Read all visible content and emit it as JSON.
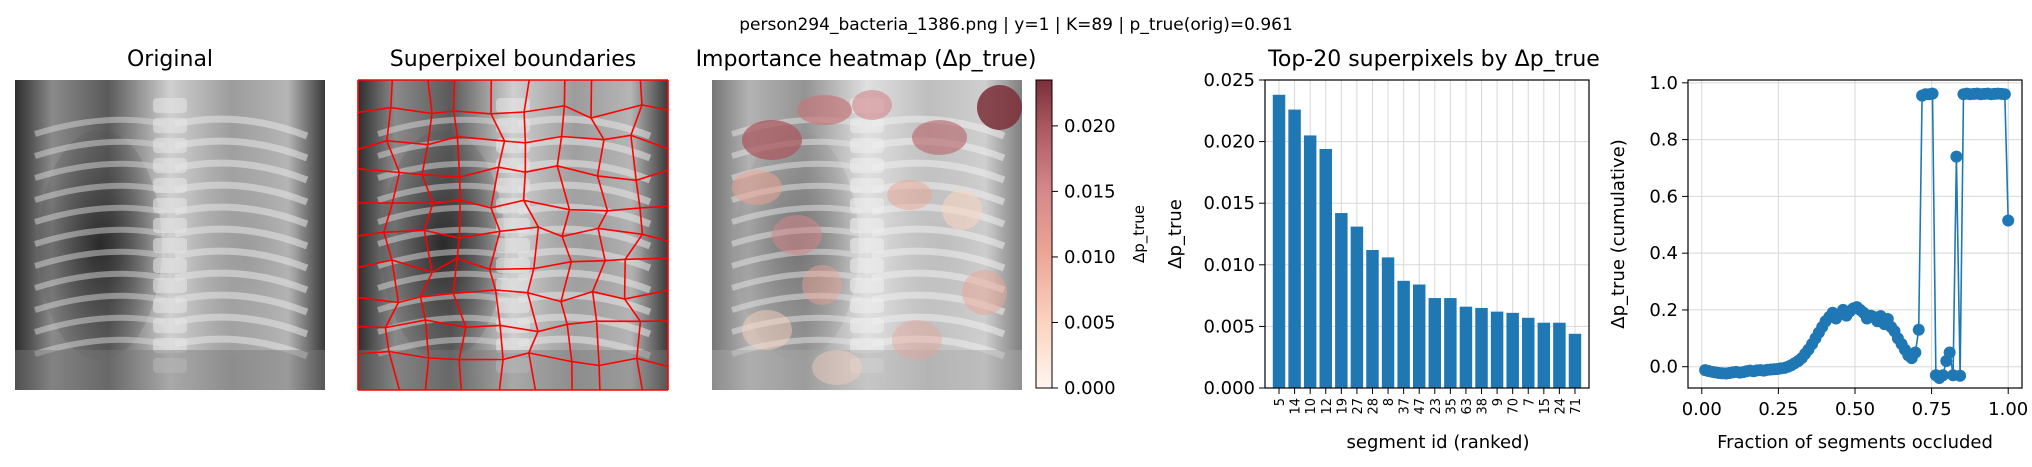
{
  "figure": {
    "suptitle": "person294_bacteria_1386.png | y=1 | K=89 | p_true(orig)=0.961"
  },
  "panels": {
    "original": {
      "title": "Original"
    },
    "superpixels": {
      "title": "Superpixel boundaries"
    },
    "heatmap": {
      "title": "Importance heatmap (Δp_true)"
    }
  },
  "colorbar": {
    "label": "Δp_true",
    "ticks": [
      "0.000",
      "0.005",
      "0.010",
      "0.015",
      "0.020"
    ],
    "range": [
      0,
      0.0235
    ],
    "colors": [
      "#fff5f0",
      "#fcd5c2",
      "#eaa394",
      "#d4868a",
      "#a9585f",
      "#7b2f38"
    ]
  },
  "colors": {
    "bar": "#1f77b4",
    "line": "#1f77b4",
    "boundary": "#ff0000",
    "grid": "#d8d8d8"
  },
  "chart_data": [
    {
      "type": "bar",
      "title": "Top-20 superpixels by Δp_true",
      "xlabel": "segment id (ranked)",
      "ylabel": "Δp_true",
      "categories": [
        "5",
        "14",
        "10",
        "12",
        "19",
        "27",
        "28",
        "8",
        "37",
        "47",
        "23",
        "35",
        "63",
        "38",
        "9",
        "70",
        "7",
        "15",
        "24",
        "71"
      ],
      "values": [
        0.0238,
        0.0226,
        0.0205,
        0.0194,
        0.0142,
        0.0131,
        0.0112,
        0.0106,
        0.0087,
        0.0084,
        0.0073,
        0.0073,
        0.0066,
        0.0065,
        0.0062,
        0.0061,
        0.0057,
        0.0053,
        0.0053,
        0.0044
      ],
      "ylim": [
        0,
        0.025
      ],
      "yticks": [
        "0.000",
        "0.005",
        "0.010",
        "0.015",
        "0.020",
        "0.025"
      ],
      "grid": true
    },
    {
      "type": "line",
      "title": "",
      "xlabel": "Fraction of segments occluded",
      "ylabel": "Δp_true (cumulative)",
      "xlim": [
        0,
        1
      ],
      "ylim": [
        -0.05,
        1.0
      ],
      "xticks": [
        "0.00",
        "0.25",
        "0.50",
        "0.75",
        "1.00"
      ],
      "yticks": [
        "0.0",
        "0.2",
        "0.4",
        "0.6",
        "0.8",
        "1.0"
      ],
      "grid": true,
      "x": [
        0.011,
        0.022,
        0.034,
        0.045,
        0.056,
        0.067,
        0.079,
        0.09,
        0.101,
        0.112,
        0.124,
        0.135,
        0.146,
        0.157,
        0.169,
        0.18,
        0.191,
        0.202,
        0.213,
        0.225,
        0.236,
        0.247,
        0.258,
        0.27,
        0.281,
        0.292,
        0.303,
        0.315,
        0.326,
        0.337,
        0.348,
        0.36,
        0.371,
        0.382,
        0.393,
        0.404,
        0.416,
        0.427,
        0.438,
        0.449,
        0.461,
        0.472,
        0.483,
        0.494,
        0.506,
        0.517,
        0.528,
        0.539,
        0.551,
        0.562,
        0.573,
        0.584,
        0.596,
        0.607,
        0.618,
        0.629,
        0.64,
        0.652,
        0.663,
        0.674,
        0.685,
        0.697,
        0.708,
        0.719,
        0.73,
        0.742,
        0.753,
        0.764,
        0.775,
        0.787,
        0.798,
        0.809,
        0.82,
        0.831,
        0.843,
        0.854,
        0.865,
        0.876,
        0.888,
        0.899,
        0.91,
        0.921,
        0.933,
        0.944,
        0.955,
        0.966,
        0.978,
        0.989,
        1.0
      ],
      "y": [
        -0.012,
        -0.015,
        -0.018,
        -0.02,
        -0.022,
        -0.023,
        -0.024,
        -0.022,
        -0.02,
        -0.018,
        -0.021,
        -0.019,
        -0.016,
        -0.014,
        -0.016,
        -0.013,
        -0.012,
        -0.014,
        -0.011,
        -0.01,
        -0.009,
        -0.008,
        -0.006,
        -0.004,
        0.0,
        0.005,
        0.012,
        0.02,
        0.03,
        0.045,
        0.06,
        0.08,
        0.1,
        0.12,
        0.14,
        0.16,
        0.175,
        0.19,
        0.17,
        0.185,
        0.2,
        0.18,
        0.195,
        0.205,
        0.21,
        0.2,
        0.19,
        0.17,
        0.18,
        0.175,
        0.16,
        0.178,
        0.15,
        0.168,
        0.14,
        0.125,
        0.1,
        0.08,
        0.06,
        0.04,
        0.03,
        0.05,
        0.13,
        0.955,
        0.96,
        0.96,
        0.962,
        -0.03,
        -0.04,
        -0.03,
        0.02,
        0.05,
        -0.03,
        0.74,
        -0.032,
        0.96,
        0.962,
        0.96,
        0.961,
        0.962,
        0.96,
        0.961,
        0.962,
        0.96,
        0.961,
        0.962,
        0.961,
        0.96,
        0.515
      ]
    }
  ]
}
